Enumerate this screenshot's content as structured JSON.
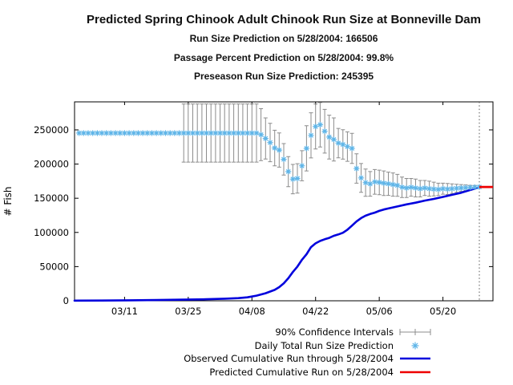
{
  "chart_data": {
    "type": "scatter",
    "title": "Predicted Spring Chinook Adult Chinook Run Size at Bonneville Dam",
    "subtitles": [
      "Run Size Prediction on 5/28/2004: 166506",
      "Passage Percent Prediction on 5/28/2004: 99.8%",
      "Preseason Run Size Prediction: 245395"
    ],
    "ylabel": "# Fish",
    "xlabel": "",
    "xticks": [
      "03/11",
      "03/25",
      "04/08",
      "04/22",
      "05/06",
      "05/20"
    ],
    "yticks": [
      0,
      50000,
      100000,
      150000,
      200000,
      250000
    ],
    "xrange": [
      "02/29",
      "05/31"
    ],
    "ylim": [
      0,
      291000
    ],
    "grid": false,
    "legend_position": "below-right",
    "prediction_date": "05/28",
    "run_size_prediction": 166506,
    "passage_percent_prediction": "99.8%",
    "preseason_run_size_prediction": 245395,
    "legend": [
      {
        "label": "90% Confidence Intervals",
        "glyph": "error-bar"
      },
      {
        "label": "Daily Total Run Size Prediction",
        "glyph": "asterisk"
      },
      {
        "label": "Observed Cumulative Run through 5/28/2004",
        "glyph": "line-blue"
      },
      {
        "label": "Predicted Cumulative Run on 5/28/2004",
        "glyph": "line-red"
      }
    ],
    "colors": {
      "points": "#5FB5E8",
      "observed": "#0000DD",
      "predicted": "#EE0000",
      "error_bars": "#8C8C8C",
      "cutoff_line": "#555555"
    },
    "daily_prediction": {
      "dates": [
        "03/01",
        "03/02",
        "03/03",
        "03/04",
        "03/05",
        "03/06",
        "03/07",
        "03/08",
        "03/09",
        "03/10",
        "03/11",
        "03/12",
        "03/13",
        "03/14",
        "03/15",
        "03/16",
        "03/17",
        "03/18",
        "03/19",
        "03/20",
        "03/21",
        "03/22",
        "03/23",
        "03/24",
        "03/25",
        "03/26",
        "03/27",
        "03/28",
        "03/29",
        "03/30",
        "03/31",
        "04/01",
        "04/02",
        "04/03",
        "04/04",
        "04/05",
        "04/06",
        "04/07",
        "04/08",
        "04/09",
        "04/10",
        "04/11",
        "04/12",
        "04/13",
        "04/14",
        "04/15",
        "04/16",
        "04/17",
        "04/18",
        "04/19",
        "04/20",
        "04/21",
        "04/22",
        "04/23",
        "04/24",
        "04/25",
        "04/26",
        "04/27",
        "04/28",
        "04/29",
        "04/30",
        "05/01",
        "05/02",
        "05/03",
        "05/04",
        "05/05",
        "05/06",
        "05/07",
        "05/08",
        "05/09",
        "05/10",
        "05/11",
        "05/12",
        "05/13",
        "05/14",
        "05/15",
        "05/16",
        "05/17",
        "05/18",
        "05/19",
        "05/20",
        "05/21",
        "05/22",
        "05/23",
        "05/24",
        "05/25",
        "05/26",
        "05/27",
        "05/28"
      ],
      "values": [
        245395,
        245395,
        245395,
        245395,
        245395,
        245395,
        245395,
        245395,
        245395,
        245395,
        245395,
        245395,
        245395,
        245395,
        245395,
        245395,
        245395,
        245395,
        245395,
        245395,
        245395,
        245395,
        245395,
        245395,
        245395,
        245395,
        245395,
        245395,
        245395,
        245395,
        245395,
        245395,
        245395,
        245395,
        245395,
        245395,
        245395,
        245395,
        245395,
        245395,
        243000,
        237500,
        231500,
        223500,
        220500,
        207000,
        189000,
        178000,
        179000,
        197500,
        223000,
        242000,
        255000,
        257500,
        248000,
        239500,
        236000,
        230700,
        228700,
        225600,
        223000,
        193500,
        179800,
        172800,
        171000,
        174000,
        173200,
        172000,
        171200,
        170000,
        168900,
        166100,
        165000,
        166000,
        165000,
        164000,
        165000,
        164000,
        163500,
        163000,
        164000,
        163500,
        164000,
        164500,
        165000,
        165500,
        165800,
        166200,
        166506
      ],
      "ci_half": [
        null,
        null,
        null,
        null,
        null,
        null,
        null,
        null,
        null,
        null,
        null,
        null,
        null,
        null,
        null,
        null,
        null,
        null,
        null,
        null,
        null,
        null,
        null,
        42500,
        42500,
        42500,
        42500,
        42500,
        42500,
        42500,
        42500,
        42500,
        42500,
        42500,
        42500,
        42500,
        42500,
        42500,
        42500,
        42500,
        38000,
        30000,
        28000,
        26000,
        25000,
        23000,
        22000,
        21500,
        21500,
        22000,
        33000,
        33000,
        33000,
        32500,
        32000,
        32000,
        31500,
        21500,
        21500,
        21500,
        22000,
        21500,
        21000,
        20000,
        18000,
        18000,
        18000,
        18000,
        17000,
        17000,
        16000,
        15000,
        14000,
        13000,
        13000,
        12000,
        11000,
        11000,
        10000,
        9000,
        8000,
        8000,
        7000,
        6000,
        5000,
        4000,
        3000,
        2500,
        2000
      ]
    },
    "observed_cumulative": {
      "dates": [
        "02/29",
        "03/06",
        "03/12",
        "03/18",
        "03/24",
        "03/29",
        "04/02",
        "04/05",
        "04/07",
        "04/09",
        "04/11",
        "04/13",
        "04/14",
        "04/15",
        "04/16",
        "04/17",
        "04/18",
        "04/19",
        "04/20",
        "04/21",
        "04/22",
        "04/23",
        "04/24",
        "04/25",
        "04/26",
        "04/27",
        "04/28",
        "04/29",
        "04/30",
        "05/01",
        "05/02",
        "05/03",
        "05/04",
        "05/05",
        "05/06",
        "05/07",
        "05/08",
        "05/10",
        "05/12",
        "05/14",
        "05/16",
        "05/18",
        "05/20",
        "05/22",
        "05/24",
        "05/26",
        "05/28"
      ],
      "values": [
        200,
        400,
        700,
        1100,
        1600,
        2200,
        3000,
        3900,
        5000,
        7500,
        11000,
        16000,
        20000,
        25500,
        33000,
        42000,
        50000,
        60000,
        68000,
        78500,
        84000,
        87500,
        90000,
        92000,
        95000,
        97000,
        99500,
        104000,
        110000,
        116000,
        121000,
        124500,
        127000,
        129000,
        131500,
        133500,
        135000,
        138000,
        141000,
        143500,
        146500,
        149000,
        152000,
        155000,
        158000,
        162000,
        166000
      ]
    },
    "predicted_cumulative": {
      "dates": [
        "05/28",
        "05/31"
      ],
      "values": [
        166506,
        166506
      ]
    }
  }
}
